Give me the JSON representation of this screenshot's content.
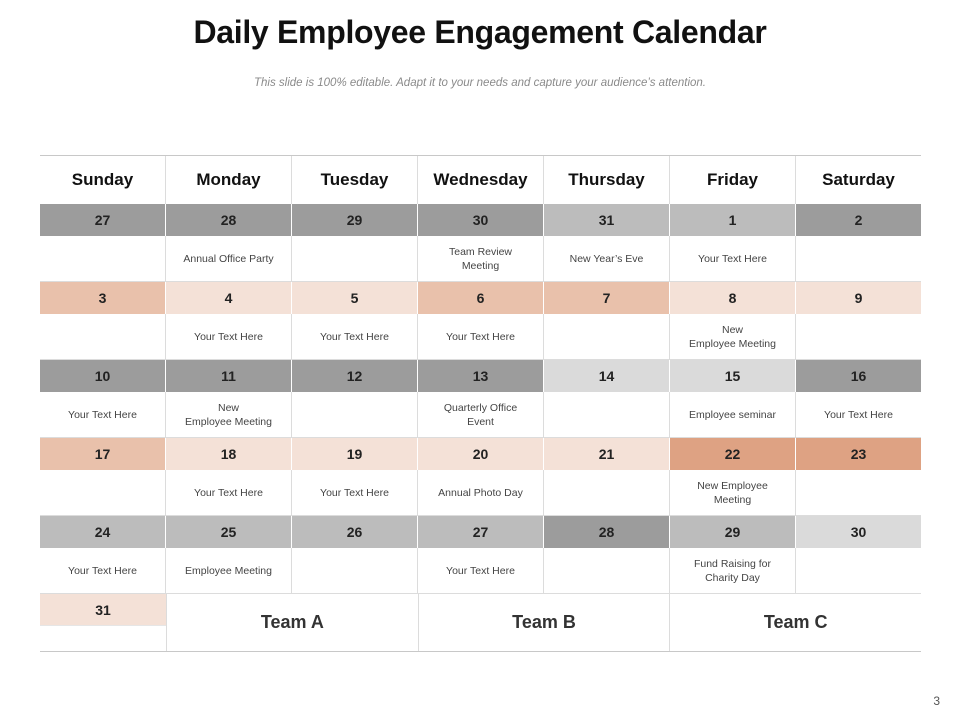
{
  "title": "Daily Employee Engagement Calendar",
  "subtitle": "This slide is 100% editable. Adapt it to your needs and capture your audience’s attention.",
  "days": [
    "Sunday",
    "Monday",
    "Tuesday",
    "Wednesday",
    "Thursday",
    "Friday",
    "Saturday"
  ],
  "weeks": [
    {
      "dates": [
        "27",
        "28",
        "29",
        "30",
        "31",
        "1",
        "2"
      ],
      "colors": [
        "#9c9c9c",
        "#9c9c9c",
        "#9c9c9c",
        "#9c9c9c",
        "#bcbcbc",
        "#bcbcbc",
        "#9c9c9c"
      ],
      "events": [
        "",
        "Annual Office Party",
        "",
        "Team Review\nMeeting",
        "New Year’s Eve",
        "Your Text Here",
        ""
      ]
    },
    {
      "dates": [
        "3",
        "4",
        "5",
        "6",
        "7",
        "8",
        "9"
      ],
      "colors": [
        "#e9c1ab",
        "#f4e1d7",
        "#f4e1d7",
        "#e9c1ab",
        "#e9c1ab",
        "#f4e1d7",
        "#f4e1d7"
      ],
      "events": [
        "",
        "Your Text Here",
        "Your Text Here",
        "Your Text Here",
        "",
        "New\nEmployee Meeting",
        ""
      ]
    },
    {
      "dates": [
        "10",
        "11",
        "12",
        "13",
        "14",
        "15",
        "16"
      ],
      "colors": [
        "#9c9c9c",
        "#9c9c9c",
        "#9c9c9c",
        "#9c9c9c",
        "#dadada",
        "#dadada",
        "#9c9c9c"
      ],
      "events": [
        "Your Text Here",
        "New\nEmployee Meeting",
        "",
        "Quarterly Office\nEvent",
        "",
        "Employee seminar",
        "Your Text Here"
      ]
    },
    {
      "dates": [
        "17",
        "18",
        "19",
        "20",
        "21",
        "22",
        "23"
      ],
      "colors": [
        "#e9c1ab",
        "#f4e1d7",
        "#f4e1d7",
        "#f4e1d7",
        "#f4e1d7",
        "#dea283",
        "#dea283"
      ],
      "events": [
        "",
        "Your Text Here",
        "Your Text Here",
        "Annual Photo Day",
        "",
        "New Employee\nMeeting",
        ""
      ]
    },
    {
      "dates": [
        "24",
        "25",
        "26",
        "27",
        "28",
        "29",
        "30"
      ],
      "colors": [
        "#bcbcbc",
        "#bcbcbc",
        "#bcbcbc",
        "#bcbcbc",
        "#9c9c9c",
        "#bcbcbc",
        "#dadada"
      ],
      "events": [
        "Your Text Here",
        "Employee Meeting",
        "",
        "Your Text Here",
        "",
        "Fund Raising for\nCharity Day",
        ""
      ]
    }
  ],
  "last_day": {
    "date": "31",
    "color": "#f4e1d7"
  },
  "teams": [
    "Team A",
    "Team B",
    "Team C"
  ],
  "page_number": "3"
}
